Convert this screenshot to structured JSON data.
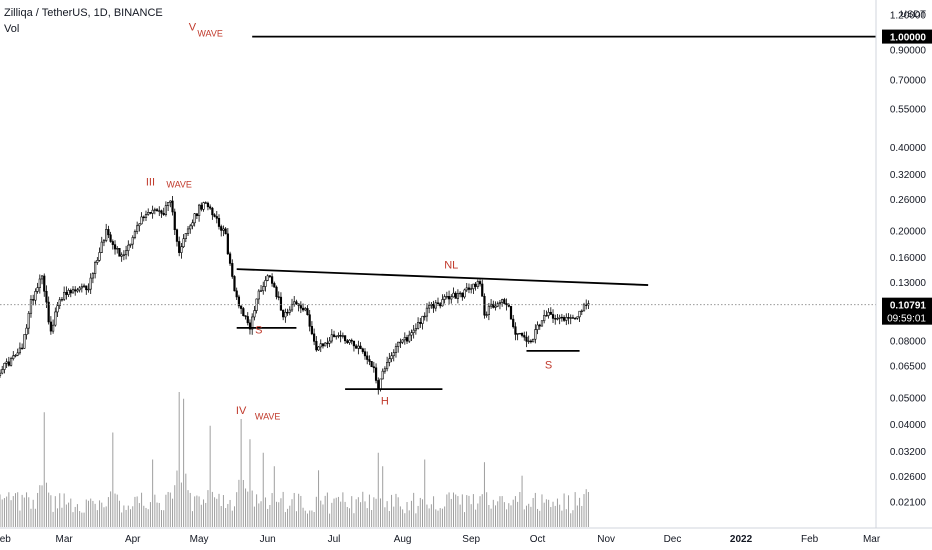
{
  "header": {
    "symbol": "Zilliqa / TetherUS, 1D, BINANCE",
    "volume_label": "Vol"
  },
  "colors": {
    "candles": "#000000",
    "volume": "#9e9e9e",
    "annotation": "#c0392b",
    "price_label_bg": "#000000",
    "price_label_text": "#ffffff",
    "axis_text": "#131722",
    "grid_dotted": "#888888"
  },
  "axis": {
    "currency": "USDT"
  },
  "chart_data": {
    "type": "candlestick",
    "y_scale": "log",
    "y_range": [
      0.0185,
      1.3
    ],
    "x_range": [
      "2021-01-31",
      "2022-03-03"
    ],
    "y_ticks": [
      "1.20000",
      "0.90000",
      "0.70000",
      "0.55000",
      "0.40000",
      "0.32000",
      "0.26000",
      "0.20000",
      "0.16000",
      "0.13000",
      "0.08000",
      "0.06500",
      "0.05000",
      "0.04000",
      "0.03200",
      "0.02600",
      "0.02100"
    ],
    "x_ticks": [
      {
        "label": "Feb",
        "date": "2021-02-01"
      },
      {
        "label": "Mar",
        "date": "2021-03-01"
      },
      {
        "label": "Apr",
        "date": "2021-04-01"
      },
      {
        "label": "May",
        "date": "2021-05-01"
      },
      {
        "label": "Jun",
        "date": "2021-06-01"
      },
      {
        "label": "Jul",
        "date": "2021-07-01"
      },
      {
        "label": "Aug",
        "date": "2021-08-01"
      },
      {
        "label": "Sep",
        "date": "2021-09-01"
      },
      {
        "label": "Oct",
        "date": "2021-10-01"
      },
      {
        "label": "Nov",
        "date": "2021-11-01"
      },
      {
        "label": "Dec",
        "date": "2021-12-01"
      },
      {
        "label": "2022",
        "date": "2022-01-01"
      },
      {
        "label": "Feb",
        "date": "2022-02-01"
      },
      {
        "label": "Mar",
        "date": "2022-03-01"
      }
    ],
    "last_price": {
      "label": "0.10791",
      "value": 0.10791,
      "countdown": "09:59:01"
    },
    "target_line": {
      "value": 1.0,
      "label": "1.00000",
      "start": "2021-05-25"
    },
    "price_path": [
      [
        "2021-01-31",
        0.063
      ],
      [
        "2021-02-05",
        0.068
      ],
      [
        "2021-02-10",
        0.075
      ],
      [
        "2021-02-14",
        0.11
      ],
      [
        "2021-02-19",
        0.14
      ],
      [
        "2021-02-23",
        0.085
      ],
      [
        "2021-02-27",
        0.115
      ],
      [
        "2021-03-05",
        0.12
      ],
      [
        "2021-03-12",
        0.125
      ],
      [
        "2021-03-16",
        0.16
      ],
      [
        "2021-03-20",
        0.2
      ],
      [
        "2021-03-27",
        0.16
      ],
      [
        "2021-04-01",
        0.19
      ],
      [
        "2021-04-05",
        0.22
      ],
      [
        "2021-04-10",
        0.24
      ],
      [
        "2021-04-14",
        0.23
      ],
      [
        "2021-04-18",
        0.25
      ],
      [
        "2021-04-22",
        0.17
      ],
      [
        "2021-04-26",
        0.2
      ],
      [
        "2021-05-01",
        0.24
      ],
      [
        "2021-05-05",
        0.25
      ],
      [
        "2021-05-09",
        0.22
      ],
      [
        "2021-05-13",
        0.19
      ],
      [
        "2021-05-17",
        0.12
      ],
      [
        "2021-05-21",
        0.1
      ],
      [
        "2021-05-24",
        0.09
      ],
      [
        "2021-05-28",
        0.12
      ],
      [
        "2021-06-02",
        0.14
      ],
      [
        "2021-06-08",
        0.1
      ],
      [
        "2021-06-13",
        0.11
      ],
      [
        "2021-06-19",
        0.1
      ],
      [
        "2021-06-23",
        0.074
      ],
      [
        "2021-06-27",
        0.078
      ],
      [
        "2021-07-02",
        0.085
      ],
      [
        "2021-07-08",
        0.08
      ],
      [
        "2021-07-13",
        0.075
      ],
      [
        "2021-07-18",
        0.066
      ],
      [
        "2021-07-21",
        0.055
      ],
      [
        "2021-07-25",
        0.068
      ],
      [
        "2021-07-30",
        0.077
      ],
      [
        "2021-08-04",
        0.083
      ],
      [
        "2021-08-09",
        0.095
      ],
      [
        "2021-08-13",
        0.105
      ],
      [
        "2021-08-18",
        0.11
      ],
      [
        "2021-08-22",
        0.115
      ],
      [
        "2021-08-27",
        0.117
      ],
      [
        "2021-09-01",
        0.124
      ],
      [
        "2021-09-05",
        0.132
      ],
      [
        "2021-09-07",
        0.1
      ],
      [
        "2021-09-11",
        0.108
      ],
      [
        "2021-09-15",
        0.112
      ],
      [
        "2021-09-18",
        0.105
      ],
      [
        "2021-09-21",
        0.085
      ],
      [
        "2021-09-25",
        0.082
      ],
      [
        "2021-09-28",
        0.077
      ],
      [
        "2021-10-01",
        0.09
      ],
      [
        "2021-10-06",
        0.1
      ],
      [
        "2021-10-11",
        0.098
      ],
      [
        "2021-10-15",
        0.096
      ],
      [
        "2021-10-19",
        0.1
      ],
      [
        "2021-10-24",
        0.108
      ]
    ],
    "volume": {
      "axis_ticks_hidden": true,
      "spikes": [
        [
          "2021-02-20",
          0.85
        ],
        [
          "2021-03-23",
          0.7
        ],
        [
          "2021-04-10",
          0.5
        ],
        [
          "2021-04-22",
          1.0
        ],
        [
          "2021-04-24",
          0.95
        ],
        [
          "2021-05-06",
          0.75
        ],
        [
          "2021-05-20",
          0.8
        ],
        [
          "2021-05-24",
          0.65
        ],
        [
          "2021-05-30",
          0.55
        ],
        [
          "2021-06-04",
          0.45
        ],
        [
          "2021-06-24",
          0.42
        ],
        [
          "2021-07-21",
          0.55
        ],
        [
          "2021-07-23",
          0.45
        ],
        [
          "2021-08-11",
          0.5
        ],
        [
          "2021-09-07",
          0.48
        ],
        [
          "2021-09-24",
          0.38
        ],
        [
          "2021-10-23",
          0.28
        ]
      ],
      "base": 0.18
    },
    "drawings": [
      {
        "type": "line",
        "name": "neckline",
        "points": [
          [
            "2021-05-18",
            0.145
          ],
          [
            "2021-11-20",
            0.127
          ]
        ]
      },
      {
        "type": "line",
        "name": "left-shoulder-line",
        "points": [
          [
            "2021-05-18",
            0.089
          ],
          [
            "2021-06-14",
            0.089
          ]
        ]
      },
      {
        "type": "line",
        "name": "head-line",
        "points": [
          [
            "2021-07-06",
            0.0535
          ],
          [
            "2021-08-19",
            0.0535
          ]
        ]
      },
      {
        "type": "line",
        "name": "right-shoulder-line",
        "points": [
          [
            "2021-09-26",
            0.0735
          ],
          [
            "2021-10-20",
            0.0735
          ]
        ]
      }
    ],
    "annotations": [
      {
        "text": "V",
        "x": "2021-04-28",
        "y": 1.05
      },
      {
        "text": "WAVE",
        "x": "2021-05-06",
        "y": 1.0
      },
      {
        "text": "III",
        "x": "2021-04-09",
        "y": 0.29
      },
      {
        "text": "WAVE",
        "x": "2021-04-22",
        "y": 0.285
      },
      {
        "text": "IV",
        "x": "2021-05-20",
        "y": 0.0435
      },
      {
        "text": "WAVE",
        "x": "2021-06-01",
        "y": 0.0415
      },
      {
        "text": "S",
        "x": "2021-05-28",
        "y": 0.085
      },
      {
        "text": "H",
        "x": "2021-07-24",
        "y": 0.047
      },
      {
        "text": "NL",
        "x": "2021-08-23",
        "y": 0.146
      },
      {
        "text": "S",
        "x": "2021-10-06",
        "y": 0.0635
      }
    ]
  }
}
